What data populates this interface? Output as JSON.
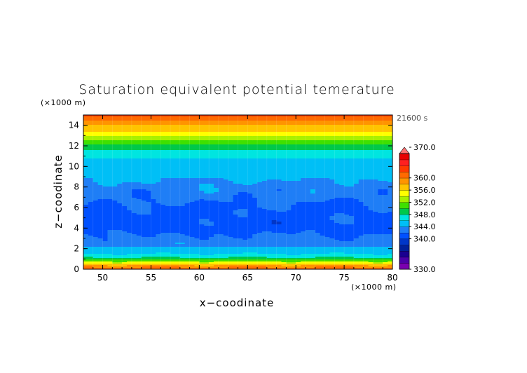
{
  "chart_data": {
    "type": "heatmap",
    "title": "Saturation equivalent potential temerature",
    "xlabel": "x−coodinate",
    "ylabel": "z−coodinate",
    "x_unit": "(×1000 m)",
    "y_unit": "(×1000 m)",
    "time_label": "21600 s",
    "xlim": [
      48,
      80
    ],
    "ylim": [
      0,
      15
    ],
    "x_ticks": [
      50,
      55,
      60,
      65,
      70,
      75,
      80
    ],
    "y_ticks": [
      0,
      2,
      4,
      6,
      8,
      10,
      12,
      14
    ],
    "colorbar": {
      "min": 330,
      "max": 370,
      "levels": [
        330,
        332,
        334,
        336,
        338,
        340,
        342,
        344,
        346,
        348,
        350,
        352,
        354,
        356,
        358,
        360,
        362,
        364,
        366,
        368,
        370
      ],
      "labels": [
        "330.0",
        "340.0",
        "344.0",
        "348.0",
        "352.0",
        "356.0",
        "360.0",
        "370.0"
      ],
      "colors": [
        "#7a00b0",
        "#4b00a8",
        "#1a0090",
        "#00209a",
        "#0036c8",
        "#0050ff",
        "#1f7ef6",
        "#00bff6",
        "#00e5e0",
        "#00c84a",
        "#3fe000",
        "#a8f000",
        "#ffff00",
        "#ffc400",
        "#ff9400",
        "#ff6a00",
        "#ff3a00",
        "#ff2020",
        "#e80000",
        "#ff7070"
      ]
    },
    "profile": [
      {
        "z": 0.0,
        "value": 362
      },
      {
        "z": 0.2,
        "value": 360
      },
      {
        "z": 0.45,
        "value": 357
      },
      {
        "z": 0.7,
        "value": 353
      },
      {
        "z": 1.0,
        "value": 349
      },
      {
        "z": 1.3,
        "value": 347
      },
      {
        "z": 1.7,
        "value": 345
      },
      {
        "z": 2.2,
        "value": 344
      },
      {
        "z": 2.6,
        "value": 343
      },
      {
        "z": 3.0,
        "value": 342.5
      },
      {
        "z": 4.0,
        "value": 341
      },
      {
        "z": 5.0,
        "value": 341.3
      },
      {
        "z": 6.0,
        "value": 341.5
      },
      {
        "z": 7.0,
        "value": 342.6
      },
      {
        "z": 8.0,
        "value": 343.2
      },
      {
        "z": 9.0,
        "value": 344.5
      },
      {
        "z": 10.0,
        "value": 345
      },
      {
        "z": 10.8,
        "value": 346
      },
      {
        "z": 11.3,
        "value": 347
      },
      {
        "z": 11.8,
        "value": 348.5
      },
      {
        "z": 12.2,
        "value": 350
      },
      {
        "z": 12.6,
        "value": 352
      },
      {
        "z": 13.0,
        "value": 354
      },
      {
        "z": 13.4,
        "value": 356
      },
      {
        "z": 13.8,
        "value": 357
      },
      {
        "z": 14.2,
        "value": 359
      },
      {
        "z": 14.6,
        "value": 361
      },
      {
        "z": 15.0,
        "value": 363
      }
    ]
  }
}
